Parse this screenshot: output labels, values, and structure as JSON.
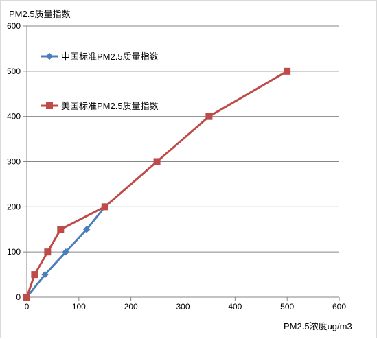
{
  "chart_data": {
    "type": "line",
    "title": "",
    "ylabel": "PM2.5质量指数",
    "xlabel": "PM2.5浓度ug/m3",
    "xlim": [
      0,
      600
    ],
    "ylim": [
      0,
      600
    ],
    "x_ticks": [
      "0",
      "100",
      "200",
      "300",
      "400",
      "500",
      "600"
    ],
    "y_ticks": [
      "0",
      "100",
      "200",
      "300",
      "400",
      "500",
      "600"
    ],
    "grid": "horizontal",
    "legend_placement": "upper-left inside plot",
    "series": [
      {
        "name": "中国标准PM2.5质量指数",
        "color": "#4a7ebb",
        "marker": "diamond",
        "x": [
          0,
          35,
          75,
          115,
          150
        ],
        "y": [
          0,
          50,
          100,
          150,
          200
        ]
      },
      {
        "name": "美国标准PM2.5质量指数",
        "color": "#be4b48",
        "marker": "square",
        "x": [
          0,
          15,
          40,
          65,
          150,
          250,
          350,
          500
        ],
        "y": [
          0,
          50,
          100,
          150,
          200,
          300,
          400,
          500
        ]
      }
    ]
  }
}
